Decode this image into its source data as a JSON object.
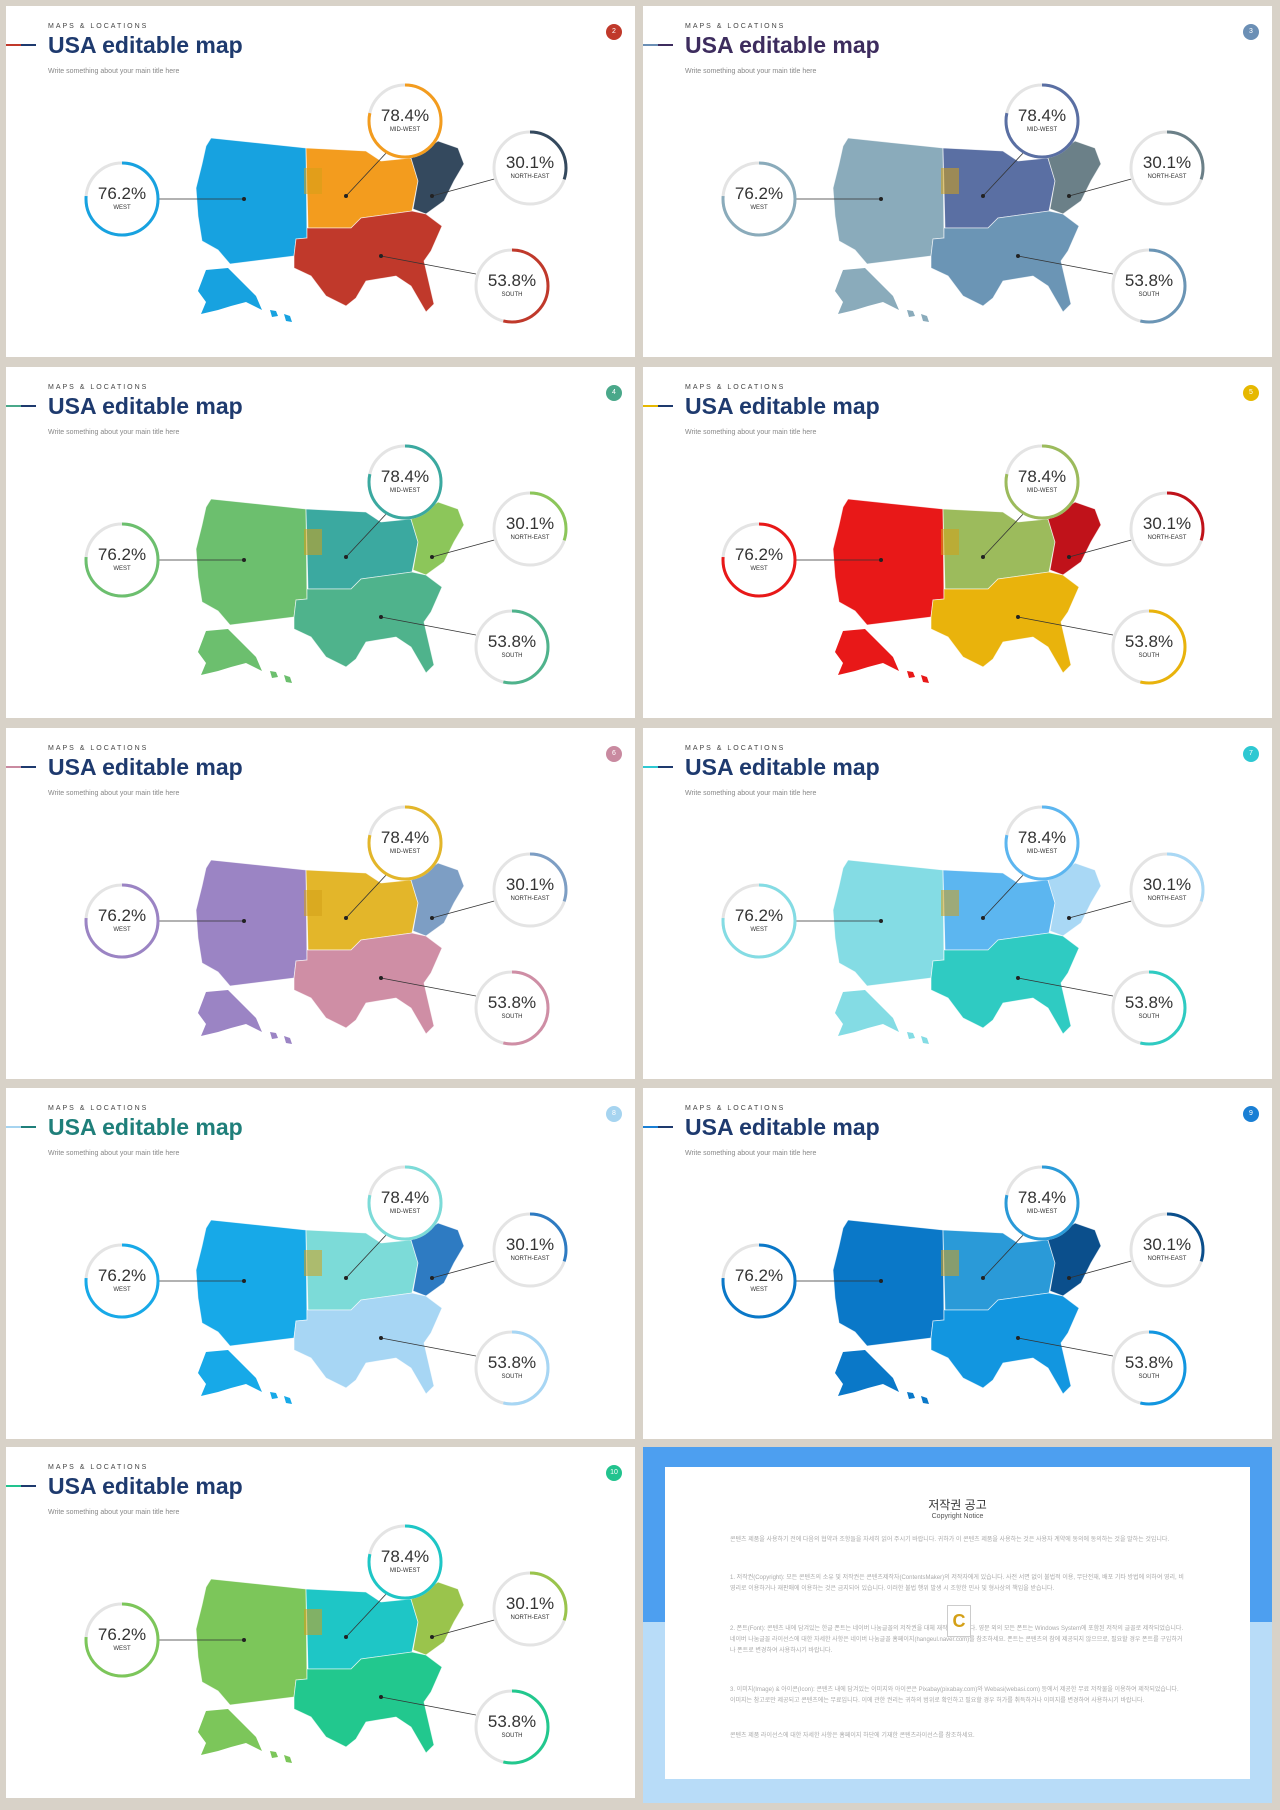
{
  "common": {
    "eyebrow": "MAPS & LOCATIONS",
    "title": "USA editable map",
    "subtitle": "Write something about your main title here",
    "stats": [
      {
        "key": "west",
        "value": "76.2%",
        "label": "WEST",
        "fraction": 0.762
      },
      {
        "key": "midwest",
        "value": "78.4%",
        "label": "MID-WEST",
        "fraction": 0.784
      },
      {
        "key": "northeast",
        "value": "30.1%",
        "label": "NORTH-EAST",
        "fraction": 0.301
      },
      {
        "key": "south",
        "value": "53.8%",
        "label": "SOUTH",
        "fraction": 0.538
      }
    ]
  },
  "slides": [
    {
      "page": "2",
      "title_color": "#1e3a6e",
      "accent": "#c0392b",
      "colors": {
        "west": "#17a2e0",
        "midwest": "#f39c1e",
        "northeast": "#34495e",
        "south": "#c0392b"
      }
    },
    {
      "page": "3",
      "title_color": "#3d2c5e",
      "accent": "#6b8fb5",
      "colors": {
        "west": "#8aabbb",
        "midwest": "#5a6fa3",
        "northeast": "#6b8088",
        "south": "#6b95b5"
      }
    },
    {
      "page": "4",
      "title_color": "#1e3a6e",
      "accent": "#4aa88a",
      "colors": {
        "west": "#6cbf6e",
        "midwest": "#3ba9a0",
        "northeast": "#8cc65a",
        "south": "#4fb38c"
      }
    },
    {
      "page": "5",
      "title_color": "#1e3a6e",
      "accent": "#e6b800",
      "colors": {
        "west": "#e81818",
        "midwest": "#9cbb5c",
        "northeast": "#c0121a",
        "south": "#e9b30c"
      }
    },
    {
      "page": "6",
      "title_color": "#1e3a6e",
      "accent": "#c98aa0",
      "colors": {
        "west": "#9b84c4",
        "midwest": "#e3b62a",
        "northeast": "#7d9ec4",
        "south": "#cf8ea5"
      }
    },
    {
      "page": "7",
      "title_color": "#1e3a6e",
      "accent": "#2ec8d2",
      "colors": {
        "west": "#84dce4",
        "midwest": "#5cb6f0",
        "northeast": "#a9d8f5",
        "south": "#2fcbc2"
      }
    },
    {
      "page": "8",
      "title_color": "#1f7f7a",
      "accent": "#a6d4f0",
      "colors": {
        "west": "#17a9e8",
        "midwest": "#7cdbd8",
        "northeast": "#2e7bc2",
        "south": "#a7d6f4"
      }
    },
    {
      "page": "9",
      "title_color": "#1e3a6e",
      "accent": "#1a7fd4",
      "colors": {
        "west": "#0a78c8",
        "midwest": "#2a9ad8",
        "northeast": "#0b4f8c",
        "south": "#1296e0"
      }
    },
    {
      "page": "10",
      "title_color": "#1e3a6e",
      "accent": "#22c38e",
      "colors": {
        "west": "#7cc65a",
        "midwest": "#1ec6c6",
        "northeast": "#9ac44c",
        "south": "#22c88e"
      }
    }
  ],
  "notice": {
    "title": "저작권 공고",
    "subtitle": "Copyright Notice",
    "paragraphs": [
      "콘텐츠 제품을 사용하기 전에 다음의 협약과 조항들을 자세히 읽어 주시기 바랍니다. 귀하가 이 콘텐츠 제품을 사용하는 것은 사용자 계약에 동의에 동의하는 것을 말하는 것입니다.",
      "1. 저작권(Copyright): 모든 콘텐츠의 소유 및 저작권은 콘텐츠제작자(ContentsMaker)의 저작자에게 있습니다. 사전 서면 없이 불법적 이용, 무단전재, 배포 기타 방법에 의하여 영리, 비영리로 이용하거나 재판매에 이용하는 것은 금지되어 있습니다. 이러한 불법 행위 발생 시 조항한 민사 및 형사상의 책임을 받습니다.",
      "2. 폰트(Font): 콘텐츠 내에 담겨있는 한글 폰트는 네이버 나눔글꼴의 저작권을 대체 재작되었습니다. 영문 외의 모든 폰트는 Windows System에 포함된 저작의 글꼴로 제작되었습니다. 네이버 나눔글꼴 라이선스에 대한 자세한 사항은 네이버 나눔글꼴 홈페이지(hangeul.naver.com)를 참조하세요. 폰트는 콘텐츠의 참에 제공되지 않으므로, 필요할 경우 폰트를 구입하거나 폰트로 변경하여 사용하시기 바랍니다.",
      "3. 이미지(Image) & 아이콘(Icon): 콘텐츠 내에 담겨있는 이미지와 아이콘은 Pixabay(pixabay.com)와 Webasi(webasi.com) 등에서 제공한 무료 저작물을 이용하여 제작되었습니다. 이미지는 참고로만 제공되고 콘텐츠에는 무료입니다. 이에 관한 권리는 귀하의 범위로 확인하고 필요할 경우 허가를 취득하거나 이미지를 변경하여 사용하시기 바랍니다.",
      "콘텐츠 제품 라이선스에 대한 자세한 사항은 홈페이지 하단에 기재한 콘텐츠라이선스를 참조하세요."
    ],
    "logo_letter": "C"
  }
}
